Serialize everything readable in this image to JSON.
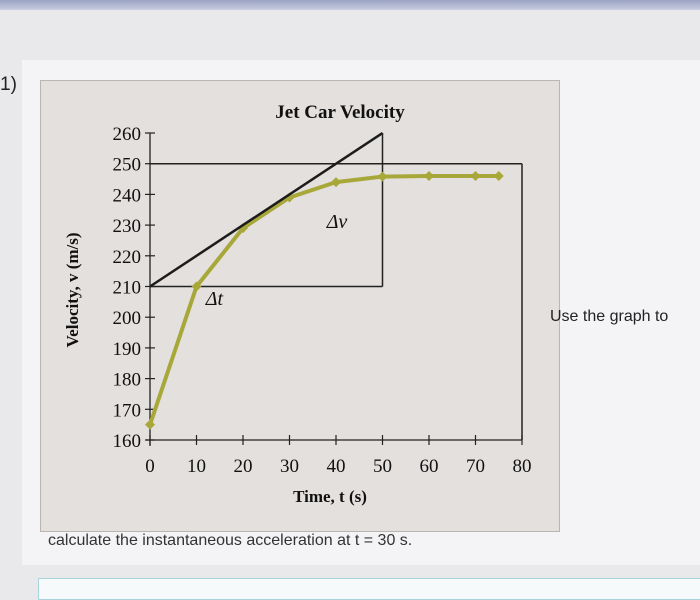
{
  "question": {
    "number": "1)",
    "side_text": "Use the graph to",
    "bottom_text": "calculate the instantaneous acceleration at t = 30 s."
  },
  "colors": {
    "curve": "#a8a83a",
    "tangent": "#1c1c1c",
    "background": "#e3e0de"
  },
  "chart_data": {
    "type": "line",
    "title": "Jet Car Velocity",
    "xlabel": "Time, t (s)",
    "ylabel": "Velocity, v (m/s)",
    "xlim": [
      0,
      80
    ],
    "ylim": [
      160,
      260
    ],
    "x_ticks": [
      "0",
      "10",
      "20",
      "30",
      "40",
      "50",
      "60",
      "70",
      "80"
    ],
    "y_ticks": [
      "260",
      "250",
      "240",
      "230",
      "220",
      "210",
      "200",
      "190",
      "180",
      "170",
      "160"
    ],
    "series": [
      {
        "x": [
          0,
          10,
          20,
          30,
          40,
          50,
          60,
          70,
          75
        ],
        "y": [
          165,
          210,
          229,
          239,
          244,
          245.8,
          246,
          246,
          246
        ]
      }
    ],
    "tangent_line": {
      "x": [
        0,
        50
      ],
      "y": [
        210,
        260
      ]
    },
    "delta_t_label": "Δt",
    "delta_v_label": "Δv",
    "grid": false,
    "legend": "none"
  }
}
